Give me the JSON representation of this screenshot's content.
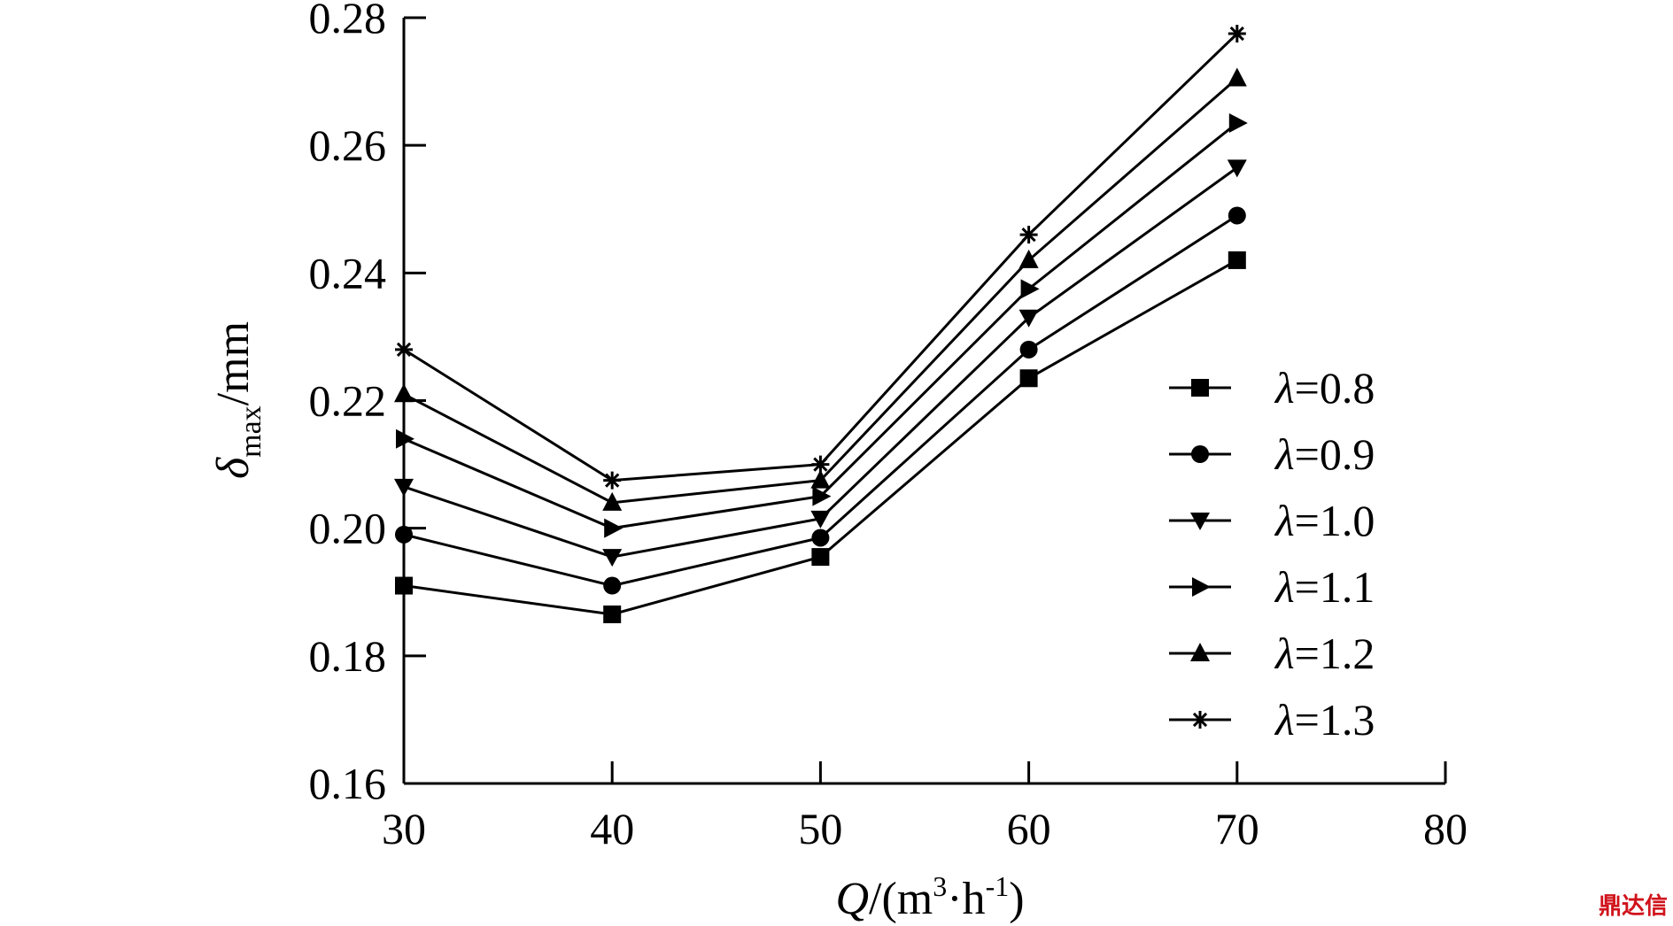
{
  "chart_data": {
    "type": "line",
    "x_ticks": [
      30,
      40,
      50,
      60,
      70,
      80
    ],
    "y_ticks": [
      "0.16",
      "0.18",
      "0.20",
      "0.22",
      "0.24",
      "0.26",
      "0.28"
    ],
    "xlim": [
      30,
      80
    ],
    "ylim": [
      0.16,
      0.28
    ],
    "x": [
      30,
      40,
      50,
      60,
      70
    ],
    "xlabel": {
      "var": "Q",
      "unit": "/(m",
      "sup1": "3",
      "mid": "·h",
      "sup2": "-1",
      "end": ")"
    },
    "ylabel": {
      "var": "δ",
      "sub": "max",
      "unit": "/mm"
    },
    "grid": false,
    "legend_position": "right",
    "series": [
      {
        "name": "λ=0.8",
        "prefix": "λ",
        "suffix": "=0.8",
        "marker": "square",
        "values": [
          0.191,
          0.1865,
          0.1955,
          0.2235,
          0.242
        ]
      },
      {
        "name": "λ=0.9",
        "prefix": "λ",
        "suffix": "=0.9",
        "marker": "circle",
        "values": [
          0.199,
          0.191,
          0.1985,
          0.228,
          0.249
        ]
      },
      {
        "name": "λ=1.0",
        "prefix": "λ",
        "suffix": "=1.0",
        "marker": "triangle-down",
        "values": [
          0.2065,
          0.1955,
          0.2015,
          0.233,
          0.2565
        ]
      },
      {
        "name": "λ=1.1",
        "prefix": "λ",
        "suffix": "=1.1",
        "marker": "triangle-right",
        "values": [
          0.214,
          0.2,
          0.205,
          0.2375,
          0.2635
        ]
      },
      {
        "name": "λ=1.2",
        "prefix": "λ",
        "suffix": "=1.2",
        "marker": "triangle-up",
        "values": [
          0.221,
          0.204,
          0.2075,
          0.242,
          0.2705
        ]
      },
      {
        "name": "λ=1.3",
        "prefix": "λ",
        "suffix": "=1.3",
        "marker": "asterisk",
        "values": [
          0.228,
          0.2075,
          0.21,
          0.246,
          0.2775
        ]
      }
    ]
  },
  "watermark": "鼎达信",
  "colors": {
    "line": "#000000",
    "watermark": "#d0121b"
  }
}
